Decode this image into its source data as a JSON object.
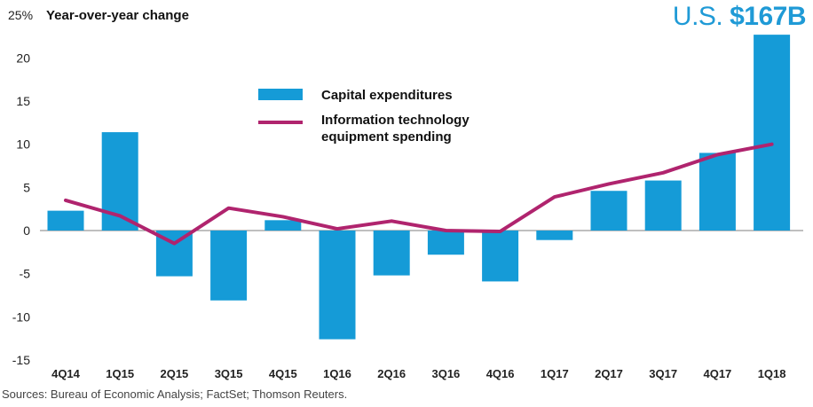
{
  "chart_data": {
    "type": "bar",
    "title": "U.S. $167B",
    "headline": {
      "prefix": "U.S. ",
      "amount": "$167B"
    },
    "ylabel": "Year-over-year change",
    "y_unit_suffix": "%",
    "ylim": [
      -15,
      25
    ],
    "yticks": [
      25,
      20,
      15,
      10,
      5,
      0,
      -5,
      -10,
      -15
    ],
    "categories": [
      "4Q14",
      "1Q15",
      "2Q15",
      "3Q15",
      "4Q15",
      "1Q16",
      "2Q16",
      "3Q16",
      "4Q16",
      "1Q17",
      "2Q17",
      "3Q17",
      "4Q17",
      "1Q18"
    ],
    "series": [
      {
        "name": "Capital expenditures",
        "kind": "bar",
        "color": "#159bd7",
        "values": [
          2.3,
          11.4,
          -5.3,
          -8.1,
          1.2,
          -12.6,
          -5.2,
          -2.8,
          -5.9,
          -1.1,
          4.6,
          5.8,
          9.0,
          22.7
        ]
      },
      {
        "name": "Information technology equipment spending",
        "kind": "line",
        "color": "#b0246e",
        "values": [
          3.5,
          1.7,
          -1.5,
          2.6,
          1.6,
          0.2,
          1.1,
          0.0,
          -0.1,
          3.9,
          5.4,
          6.7,
          8.8,
          10.0
        ]
      }
    ],
    "legend": [
      "Capital expenditures",
      "Information technology",
      "equipment spending"
    ],
    "grid": false,
    "legend_position": "top-center"
  },
  "source": "Sources: Bureau of Economic Analysis; FactSet; Thomson Reuters."
}
